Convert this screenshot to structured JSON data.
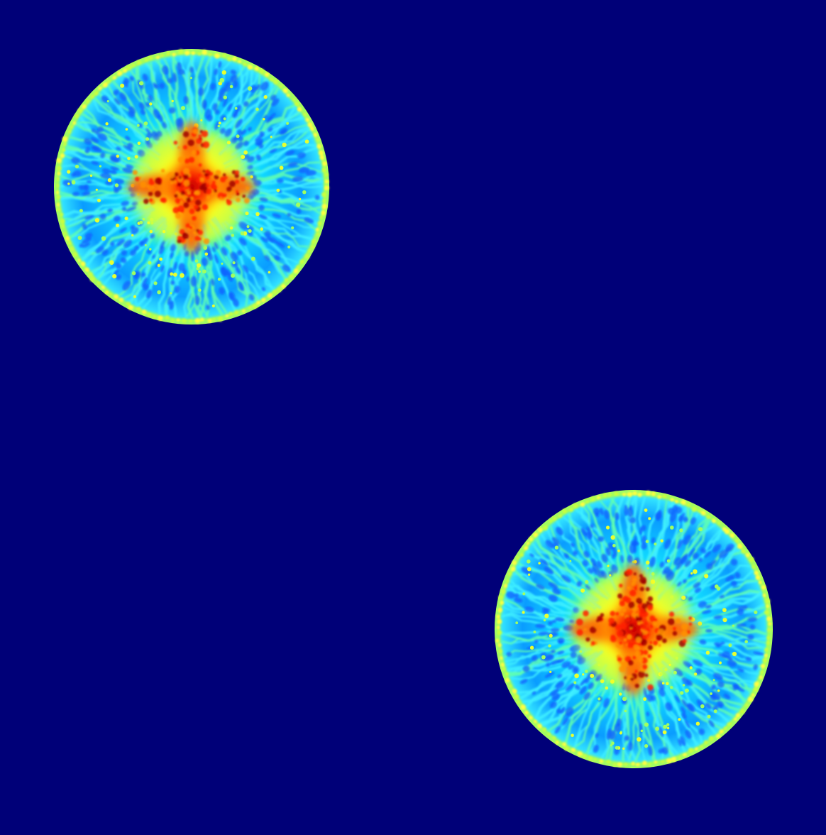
{
  "image": {
    "description_kind": "false-color density field",
    "colormap": "jet",
    "background_color": "#000078",
    "colormap_stops": [
      "#000080",
      "#0000ff",
      "#00a0ff",
      "#00ffff",
      "#80ff80",
      "#ffff00",
      "#ff8000",
      "#ff0000",
      "#800000"
    ],
    "blobs": [
      {
        "id": "upper-left-blob",
        "core_shape": "four-armed star",
        "ring_color": "#a8ff50",
        "field_color": "#20c8ff"
      },
      {
        "id": "lower-right-blob",
        "core_shape": "four-armed star",
        "ring_color": "#a8ff50",
        "field_color": "#20c8ff"
      }
    ]
  }
}
